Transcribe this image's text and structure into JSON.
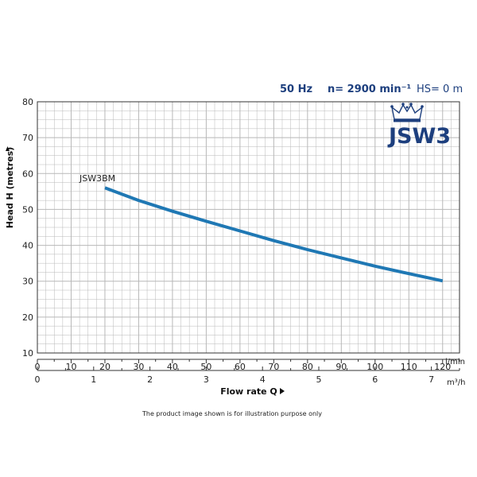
{
  "header": {
    "freq": "50 Hz",
    "speed": "n= 2900 min⁻¹",
    "suction": "HS= 0 m"
  },
  "logo": {
    "text": "JSW3",
    "icon": "crown-icon"
  },
  "colors": {
    "curve": "#1f78b4",
    "text_accent": "#1d3f7e",
    "grid": "#b8b8b8"
  },
  "chart_data": {
    "type": "line",
    "title": "",
    "xlabel": "Flow rate Q",
    "ylabel": "Head H (metres)",
    "x_unit": "l/min",
    "x2_unit": "m³/h",
    "xlim": [
      0,
      125
    ],
    "ylim": [
      10,
      80
    ],
    "x_ticks": [
      0,
      10,
      20,
      30,
      40,
      50,
      60,
      70,
      80,
      90,
      100,
      110,
      120
    ],
    "x2_ticks": [
      0,
      1,
      2,
      3,
      4,
      5,
      6,
      7
    ],
    "y_ticks": [
      10,
      20,
      30,
      40,
      50,
      60,
      70,
      80
    ],
    "grid": true,
    "series": [
      {
        "name": "JSW3BM",
        "x": [
          20,
          30,
          40,
          50,
          60,
          70,
          80,
          90,
          100,
          110,
          120
        ],
        "y": [
          56,
          52.5,
          49.5,
          46.7,
          44,
          41.3,
          38.8,
          36.5,
          34.2,
          32.1,
          30.1
        ]
      }
    ]
  },
  "footer": {
    "note": "The product image shown is for illustration purpose only"
  }
}
